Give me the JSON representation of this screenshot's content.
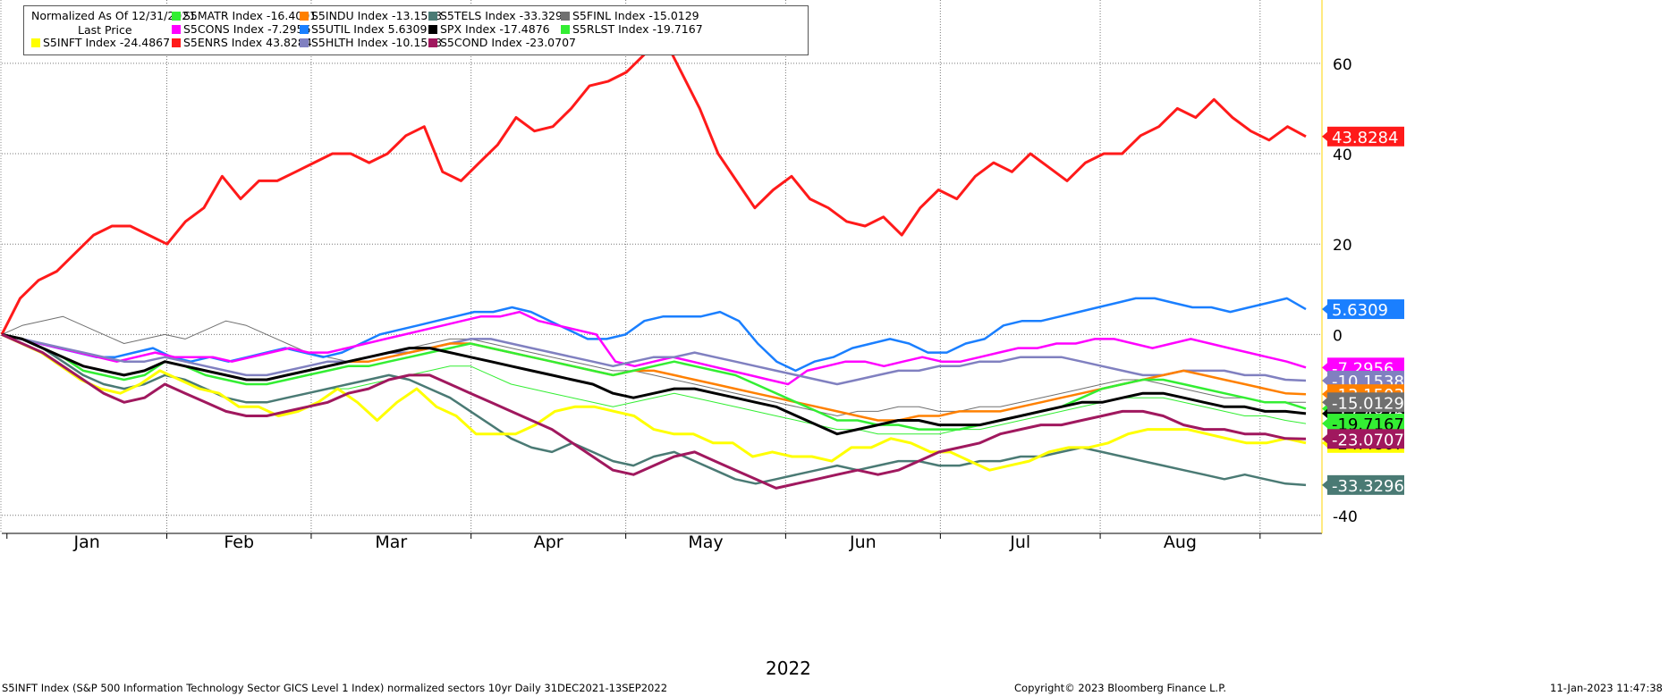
{
  "legend": {
    "title": "Normalized As Of 12/31/2021",
    "subtitle": "Last Price"
  },
  "year_label": "2022",
  "footer": {
    "left": "S5INFT Index (S&P 500 Information Technology Sector GICS Level 1 Index) normalized sectors 10yr  Daily 31DEC2021-13SEP2022",
    "center": "Copyright© 2023 Bloomberg Finance L.P.",
    "right": "11-Jan-2023 11:47:38"
  },
  "chart_data": {
    "type": "line",
    "x_start": "2021-12-31",
    "x_end": "2022-09-13",
    "ylim": [
      -44,
      74
    ],
    "yticks": [
      -40,
      0,
      20,
      40,
      60
    ],
    "month_labels": [
      "Jan",
      "Feb",
      "Mar",
      "Apr",
      "May",
      "Jun",
      "Jul",
      "Aug"
    ],
    "grid": true,
    "legend_position": "top-left",
    "series": [
      {
        "name": "S5INFT Index",
        "last": "-24.4867",
        "color": "#ffff00",
        "label_text": "#000000",
        "width": 3,
        "values": [
          0,
          -2,
          -4,
          -7,
          -10,
          -12,
          -13,
          -11,
          -8,
          -10,
          -12,
          -13,
          -16,
          -16,
          -18,
          -17,
          -15,
          -12,
          -15,
          -19,
          -15,
          -12,
          -16,
          -18,
          -22,
          -22,
          -22,
          -20,
          -17,
          -16,
          -16,
          -17,
          -18,
          -21,
          -22,
          -22,
          -24,
          -24,
          -27,
          -26,
          -27,
          -27,
          -28,
          -25,
          -25,
          -23,
          -24,
          -26,
          -26,
          -28,
          -30,
          -29,
          -28,
          -26,
          -25,
          -25,
          -24,
          -22,
          -21,
          -21,
          -21,
          -22,
          -23,
          -24,
          -24,
          -23,
          -24
        ]
      },
      {
        "name": "S5ENRS Index",
        "last": "43.8284",
        "color": "#ff1a1a",
        "label_text": "#ffffff",
        "width": 3,
        "values": [
          0,
          8,
          12,
          14,
          18,
          22,
          24,
          24,
          22,
          20,
          25,
          28,
          35,
          30,
          34,
          34,
          36,
          38,
          40,
          40,
          38,
          40,
          44,
          46,
          36,
          34,
          38,
          42,
          48,
          45,
          46,
          50,
          55,
          56,
          58,
          62,
          66,
          58,
          50,
          40,
          34,
          28,
          32,
          35,
          30,
          28,
          25,
          24,
          26,
          22,
          28,
          32,
          30,
          35,
          38,
          36,
          40,
          37,
          34,
          38,
          40,
          40,
          44,
          46,
          50,
          48,
          52,
          48,
          45,
          43,
          46,
          43.8
        ]
      },
      {
        "name": "S5UTIL Index",
        "last": "5.6309",
        "color": "#1a7fff",
        "label_text": "#ffffff",
        "width": 2.5,
        "values": [
          0,
          -1,
          -2,
          -3,
          -4,
          -5,
          -5,
          -4,
          -3,
          -5,
          -6,
          -5,
          -6,
          -5,
          -4,
          -3,
          -4,
          -5,
          -4,
          -2,
          0,
          1,
          2,
          3,
          4,
          5,
          5,
          6,
          5,
          3,
          1,
          -1,
          -1,
          0,
          3,
          4,
          4,
          4,
          5,
          3,
          -2,
          -6,
          -8,
          -6,
          -5,
          -3,
          -2,
          -1,
          -2,
          -4,
          -4,
          -2,
          -1,
          2,
          3,
          3,
          4,
          5,
          6,
          7,
          8,
          8,
          7,
          6,
          6,
          5,
          6,
          7,
          8,
          5.6
        ]
      },
      {
        "name": "S5CONS Index",
        "last": "-7.2956",
        "color": "#ff00ff",
        "label_text": "#ffffff",
        "width": 2.5,
        "values": [
          0,
          -1,
          -2,
          -3,
          -4,
          -5,
          -6,
          -5,
          -4,
          -5,
          -5,
          -5,
          -6,
          -5,
          -4,
          -3,
          -4,
          -4,
          -3,
          -2,
          -1,
          0,
          1,
          2,
          3,
          4,
          4,
          5,
          3,
          2,
          1,
          0,
          -6,
          -7,
          -6,
          -5,
          -6,
          -7,
          -8,
          -9,
          -10,
          -11,
          -8,
          -7,
          -6,
          -6,
          -7,
          -6,
          -5,
          -6,
          -6,
          -5,
          -4,
          -3,
          -3,
          -2,
          -2,
          -1,
          -1,
          -2,
          -3,
          -2,
          -1,
          -2,
          -3,
          -4,
          -5,
          -6,
          -7.3
        ]
      },
      {
        "name": "S5HLTH Index",
        "last": "-10.1538",
        "color": "#8080c0",
        "label_text": "#ffffff",
        "width": 2.5,
        "values": [
          0,
          -1,
          -2,
          -3,
          -4,
          -5,
          -6,
          -6,
          -5,
          -6,
          -7,
          -8,
          -9,
          -9,
          -8,
          -7,
          -6,
          -6,
          -5,
          -4,
          -4,
          -3,
          -2,
          -1,
          -1,
          -2,
          -3,
          -4,
          -5,
          -6,
          -7,
          -6,
          -5,
          -5,
          -4,
          -5,
          -6,
          -7,
          -8,
          -9,
          -10,
          -11,
          -10,
          -9,
          -8,
          -8,
          -7,
          -7,
          -6,
          -6,
          -5,
          -5,
          -5,
          -6,
          -7,
          -8,
          -9,
          -9,
          -8,
          -8,
          -8,
          -9,
          -9,
          -10,
          -10.2
        ]
      },
      {
        "name": "S5INDU Index",
        "last": "-13.1503",
        "color": "#ff8000",
        "label_text": "#ffffff",
        "width": 2.5,
        "values": [
          0,
          -1,
          -3,
          -5,
          -7,
          -8,
          -9,
          -8,
          -6,
          -7,
          -8,
          -9,
          -10,
          -10,
          -9,
          -8,
          -7,
          -6,
          -6,
          -5,
          -4,
          -3,
          -2,
          -2,
          -3,
          -4,
          -5,
          -6,
          -7,
          -8,
          -9,
          -8,
          -8,
          -9,
          -10,
          -11,
          -12,
          -13,
          -14,
          -15,
          -16,
          -17,
          -18,
          -19,
          -19,
          -18,
          -18,
          -17,
          -17,
          -17,
          -16,
          -15,
          -14,
          -13,
          -12,
          -11,
          -10,
          -9,
          -8,
          -9,
          -10,
          -11,
          -12,
          -13,
          -13.2
        ]
      },
      {
        "name": "S5MATR Index",
        "last": "-16.4001",
        "color": "#33ee33",
        "label_text": "#000000",
        "width": 2.5,
        "values": [
          0,
          -1,
          -3,
          -5,
          -8,
          -9,
          -10,
          -9,
          -6,
          -7,
          -9,
          -10,
          -11,
          -11,
          -10,
          -9,
          -8,
          -7,
          -7,
          -6,
          -5,
          -4,
          -3,
          -2,
          -3,
          -4,
          -5,
          -6,
          -7,
          -8,
          -9,
          -8,
          -7,
          -6,
          -7,
          -8,
          -9,
          -11,
          -13,
          -15,
          -17,
          -19,
          -19,
          -20,
          -20,
          -21,
          -21,
          -21,
          -20,
          -19,
          -18,
          -17,
          -16,
          -14,
          -12,
          -11,
          -10,
          -10,
          -11,
          -12,
          -13,
          -14,
          -15,
          -15,
          -16.4
        ]
      },
      {
        "name": "SPX Index",
        "last": "-17.4876",
        "color": "#000000",
        "label_text": "#ffffff",
        "width": 3,
        "values": [
          0,
          -1,
          -3,
          -5,
          -7,
          -8,
          -9,
          -8,
          -6,
          -7,
          -8,
          -9,
          -10,
          -10,
          -9,
          -8,
          -7,
          -6,
          -5,
          -4,
          -3,
          -3,
          -4,
          -5,
          -6,
          -7,
          -8,
          -9,
          -10,
          -11,
          -13,
          -14,
          -13,
          -12,
          -12,
          -13,
          -14,
          -15,
          -16,
          -18,
          -20,
          -22,
          -21,
          -20,
          -19,
          -19,
          -20,
          -20,
          -20,
          -19,
          -18,
          -17,
          -16,
          -15,
          -15,
          -14,
          -13,
          -13,
          -14,
          -15,
          -16,
          -16,
          -17,
          -17,
          -17.5
        ]
      },
      {
        "name": "S5RLST Index",
        "last": "-19.7167",
        "color": "#33ee33",
        "label_text": "#000000",
        "width": 1,
        "values": [
          0,
          -1,
          -3,
          -6,
          -9,
          -11,
          -12,
          -11,
          -9,
          -10,
          -12,
          -14,
          -15,
          -15,
          -14,
          -13,
          -12,
          -12,
          -11,
          -10,
          -9,
          -8,
          -7,
          -7,
          -9,
          -11,
          -12,
          -13,
          -14,
          -15,
          -16,
          -15,
          -14,
          -13,
          -14,
          -15,
          -16,
          -17,
          -18,
          -19,
          -20,
          -21,
          -21,
          -22,
          -22,
          -22,
          -22,
          -21,
          -21,
          -20,
          -19,
          -18,
          -17,
          -16,
          -15,
          -14,
          -14,
          -14,
          -15,
          -16,
          -17,
          -18,
          -18,
          -19,
          -19.7
        ]
      },
      {
        "name": "S5COND Index",
        "last": "-23.0707",
        "color": "#a0185e",
        "label_text": "#ffffff",
        "width": 3,
        "values": [
          0,
          -2,
          -4,
          -7,
          -10,
          -13,
          -15,
          -14,
          -11,
          -13,
          -15,
          -17,
          -18,
          -18,
          -17,
          -16,
          -15,
          -13,
          -12,
          -10,
          -9,
          -9,
          -11,
          -13,
          -15,
          -17,
          -19,
          -21,
          -24,
          -27,
          -30,
          -31,
          -29,
          -27,
          -26,
          -28,
          -30,
          -32,
          -34,
          -33,
          -32,
          -31,
          -30,
          -31,
          -30,
          -28,
          -26,
          -25,
          -24,
          -22,
          -21,
          -20,
          -20,
          -19,
          -18,
          -17,
          -17,
          -18,
          -20,
          -21,
          -21,
          -22,
          -22,
          -23,
          -23.1
        ]
      },
      {
        "name": "S5TELS Index",
        "last": "-33.3296",
        "color": "#4a7a74",
        "label_text": "#ffffff",
        "width": 2.5,
        "values": [
          0,
          -1,
          -3,
          -6,
          -9,
          -11,
          -12,
          -11,
          -9,
          -10,
          -12,
          -14,
          -15,
          -15,
          -14,
          -13,
          -12,
          -11,
          -10,
          -9,
          -10,
          -12,
          -14,
          -17,
          -20,
          -23,
          -25,
          -26,
          -24,
          -26,
          -28,
          -29,
          -27,
          -26,
          -28,
          -30,
          -32,
          -33,
          -32,
          -31,
          -30,
          -29,
          -30,
          -29,
          -28,
          -28,
          -29,
          -29,
          -28,
          -28,
          -27,
          -27,
          -26,
          -25,
          -26,
          -27,
          -28,
          -29,
          -30,
          -31,
          -32,
          -31,
          -32,
          -33,
          -33.3
        ]
      },
      {
        "name": "S5FINL Index",
        "last": "-15.0129",
        "color": "#707070",
        "label_text": "#ffffff",
        "width": 1,
        "values": [
          0,
          2,
          3,
          4,
          2,
          0,
          -2,
          -1,
          0,
          -1,
          1,
          3,
          2,
          0,
          -2,
          -4,
          -5,
          -6,
          -5,
          -4,
          -3,
          -2,
          -1,
          -1,
          -2,
          -3,
          -4,
          -5,
          -6,
          -7,
          -8,
          -8,
          -9,
          -10,
          -11,
          -12,
          -13,
          -14,
          -15,
          -16,
          -17,
          -18,
          -17,
          -17,
          -16,
          -16,
          -17,
          -17,
          -16,
          -16,
          -15,
          -14,
          -13,
          -12,
          -11,
          -10,
          -10,
          -11,
          -12,
          -13,
          -14,
          -14,
          -15,
          -15,
          -15
        ]
      }
    ]
  }
}
